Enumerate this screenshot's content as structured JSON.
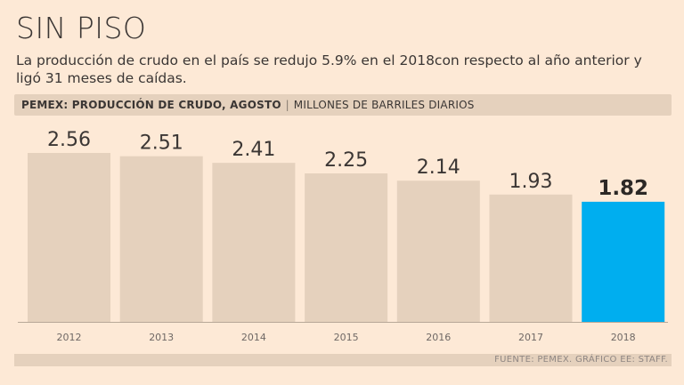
{
  "header": {
    "title": "SIN PISO",
    "subtitle": "La producción de crudo en el país se redujo 5.9% en el 2018con respecto al año anterior y ligó 31 meses de caídas."
  },
  "chart_header": {
    "main": "PEMEX: PRODUCCIÓN DE CRUDO, AGOSTO",
    "separator": "|",
    "unit": "MILLONES DE BARRILES DIARIOS"
  },
  "chart_data": {
    "type": "bar",
    "title": "PEMEX: PRODUCCIÓN DE CRUDO, AGOSTO",
    "ylabel": "MILLONES DE BARRILES DIARIOS",
    "xlabel": "",
    "categories": [
      "2012",
      "2013",
      "2014",
      "2015",
      "2016",
      "2017",
      "2018"
    ],
    "values": [
      2.56,
      2.51,
      2.41,
      2.25,
      2.14,
      1.93,
      1.82
    ],
    "labels": [
      "2.56",
      "2.51",
      "2.41",
      "2.25",
      "2.14",
      "1.93",
      "1.82"
    ],
    "highlight_index": 6,
    "ylim": [
      0,
      2.56
    ],
    "grid": false,
    "colors": {
      "bar": "#e5d1bd",
      "highlight": "#00aeef"
    }
  },
  "footer": {
    "source": "FUENTE: PEMEX. GRÁFICO EE: STAFF."
  }
}
